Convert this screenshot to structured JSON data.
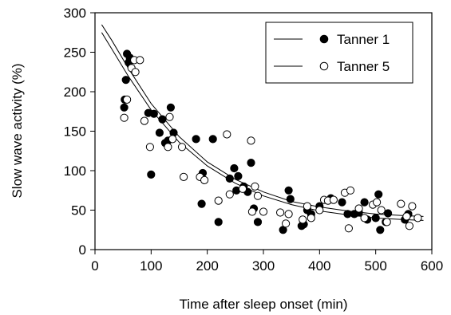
{
  "chart_data": {
    "type": "scatter",
    "xlabel": "Time after sleep onset (min)",
    "ylabel": "Slow wave activity (%)",
    "xlim": [
      0,
      600
    ],
    "ylim": [
      0,
      300
    ],
    "xticks": [
      "0",
      "100",
      "200",
      "300",
      "400",
      "500",
      "600"
    ],
    "yticks": [
      "0",
      "50",
      "100",
      "150",
      "200",
      "250",
      "300"
    ],
    "grid": false,
    "legend_position": "top-right",
    "series": [
      {
        "name": "Tanner 1",
        "marker": "filled-circle",
        "color": "#000000",
        "points": [
          [
            52,
            180
          ],
          [
            53,
            190
          ],
          [
            55,
            215
          ],
          [
            57,
            248
          ],
          [
            60,
            237
          ],
          [
            62,
            243
          ],
          [
            95,
            173
          ],
          [
            100,
            95
          ],
          [
            105,
            172
          ],
          [
            115,
            148
          ],
          [
            120,
            165
          ],
          [
            125,
            135
          ],
          [
            130,
            138
          ],
          [
            135,
            180
          ],
          [
            140,
            148
          ],
          [
            180,
            140
          ],
          [
            190,
            58
          ],
          [
            192,
            97
          ],
          [
            210,
            140
          ],
          [
            220,
            35
          ],
          [
            240,
            90
          ],
          [
            248,
            103
          ],
          [
            252,
            75
          ],
          [
            255,
            93
          ],
          [
            265,
            80
          ],
          [
            272,
            73
          ],
          [
            278,
            110
          ],
          [
            283,
            52
          ],
          [
            290,
            35
          ],
          [
            335,
            25
          ],
          [
            345,
            75
          ],
          [
            348,
            64
          ],
          [
            368,
            30
          ],
          [
            372,
            32
          ],
          [
            378,
            50
          ],
          [
            385,
            45
          ],
          [
            400,
            55
          ],
          [
            420,
            65
          ],
          [
            440,
            60
          ],
          [
            450,
            45
          ],
          [
            462,
            45
          ],
          [
            470,
            47
          ],
          [
            480,
            60
          ],
          [
            485,
            38
          ],
          [
            500,
            40
          ],
          [
            505,
            70
          ],
          [
            508,
            25
          ],
          [
            518,
            35
          ],
          [
            522,
            46
          ],
          [
            552,
            38
          ],
          [
            558,
            45
          ]
        ]
      },
      {
        "name": "Tanner 5",
        "marker": "open-circle",
        "color": "#000000",
        "points": [
          [
            52,
            167
          ],
          [
            57,
            190
          ],
          [
            65,
            230
          ],
          [
            70,
            240
          ],
          [
            72,
            225
          ],
          [
            80,
            240
          ],
          [
            88,
            163
          ],
          [
            98,
            130
          ],
          [
            130,
            130
          ],
          [
            133,
            168
          ],
          [
            138,
            140
          ],
          [
            155,
            130
          ],
          [
            158,
            92
          ],
          [
            187,
            92
          ],
          [
            195,
            88
          ],
          [
            220,
            62
          ],
          [
            235,
            146
          ],
          [
            240,
            70
          ],
          [
            263,
            77
          ],
          [
            278,
            138
          ],
          [
            280,
            48
          ],
          [
            285,
            80
          ],
          [
            290,
            68
          ],
          [
            300,
            48
          ],
          [
            330,
            47
          ],
          [
            340,
            33
          ],
          [
            345,
            45
          ],
          [
            370,
            38
          ],
          [
            378,
            55
          ],
          [
            385,
            40
          ],
          [
            400,
            50
          ],
          [
            408,
            63
          ],
          [
            415,
            62
          ],
          [
            425,
            63
          ],
          [
            445,
            72
          ],
          [
            452,
            27
          ],
          [
            455,
            75
          ],
          [
            470,
            52
          ],
          [
            480,
            40
          ],
          [
            495,
            57
          ],
          [
            502,
            60
          ],
          [
            510,
            50
          ],
          [
            520,
            35
          ],
          [
            545,
            58
          ],
          [
            555,
            42
          ],
          [
            560,
            30
          ],
          [
            565,
            55
          ],
          [
            575,
            40
          ]
        ]
      }
    ],
    "fit_curves": [
      {
        "series": "Tanner 1",
        "points": [
          [
            12,
            285
          ],
          [
            30,
            265
          ],
          [
            60,
            229
          ],
          [
            100,
            185
          ],
          [
            150,
            143
          ],
          [
            200,
            111
          ],
          [
            250,
            89
          ],
          [
            300,
            73
          ],
          [
            350,
            61
          ],
          [
            400,
            54
          ],
          [
            450,
            49
          ],
          [
            500,
            45
          ],
          [
            550,
            43
          ],
          [
            585,
            42
          ]
        ]
      },
      {
        "series": "Tanner 5",
        "points": [
          [
            12,
            275
          ],
          [
            30,
            254
          ],
          [
            60,
            219
          ],
          [
            100,
            177
          ],
          [
            150,
            136
          ],
          [
            200,
            106
          ],
          [
            250,
            84
          ],
          [
            300,
            68
          ],
          [
            350,
            57
          ],
          [
            400,
            49
          ],
          [
            450,
            44
          ],
          [
            500,
            40
          ],
          [
            550,
            38
          ],
          [
            585,
            37
          ]
        ]
      }
    ]
  }
}
